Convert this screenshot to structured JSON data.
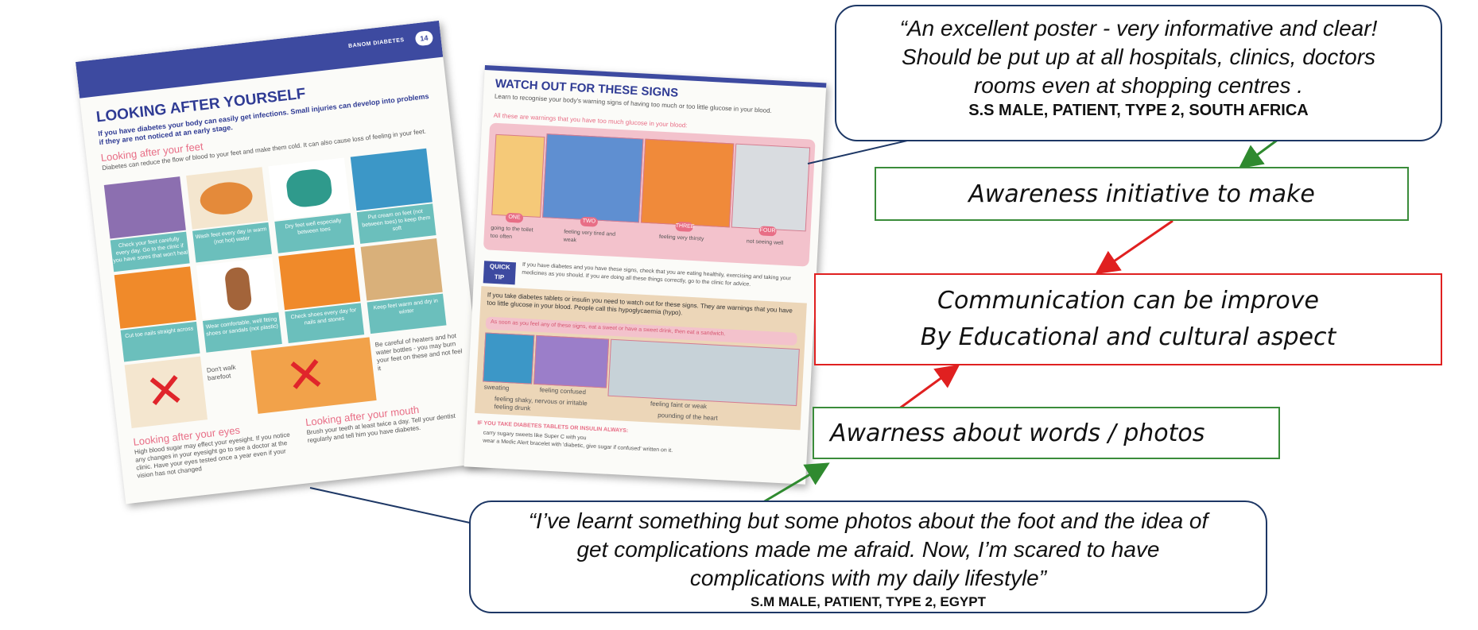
{
  "poster_left": {
    "header": "BANOM DIABETES",
    "page_number": "14",
    "title": "LOOKING AFTER YOURSELF",
    "intro": "If you have diabetes your body can easily get infections. Small injuries can develop into problems if they are not noticed at an early stage.",
    "feet_heading": "Looking after your feet",
    "feet_text": "Diabetes can reduce the flow of blood to your feet and make them cold. It can also cause loss of feeling in your feet.",
    "captions": [
      "Check your feet carefully every day. Go to the clinic if you have sores that won't heal",
      "Wash feet every day in warm (not hot) water",
      "Dry feet well especially between toes",
      "Put cream on feet (not between toes) to keep them soft",
      "Cut toe nails straight across",
      "Wear comfortable, well fitting shoes or sandals (not plastic)",
      "Check shoes every day for nails and stones",
      "Keep feet warm and dry in winter"
    ],
    "dont_walk": "Don't walk barefoot",
    "heaters_warning": "Be careful of heaters and hot water bottles - you may burn your feet on these and not feel it",
    "eyes_heading": "Looking after your eyes",
    "eyes_text": "High blood sugar may effect your eyesight. If you notice any changes in your eyesight go to see a doctor at the clinic. Have your eyes tested once a year even if your vision has not changed",
    "mouth_heading": "Looking after your mouth",
    "mouth_text": "Brush your teeth at least twice a day. Tell your dentist regularly and tell him you have diabetes."
  },
  "poster_right": {
    "title": "WATCH OUT FOR THESE SIGNS",
    "intro": "Learn to recognise your body's warning signs of having too much or too little glucose in your blood.",
    "high_heading": "All these are warnings that you have too much glucose in your blood:",
    "high_signs": [
      "going to the toilet too often",
      "feeling very tired and weak",
      "feeling very thirsty",
      "not seeing well"
    ],
    "badges": [
      "ONE",
      "TWO",
      "THREE",
      "FOUR"
    ],
    "quick_tip_label": "QUICK TIP",
    "quick_tip_text": "If you have diabetes and you have these signs, check that you are eating healthily, exercising and taking your medicines as you should. If you are doing all these things correctly, go to the clinic for advice.",
    "low_text": "If you take diabetes tablets or insulin you need to watch out for these signs. They are warnings that you have too little glucose in your blood. People call this hypoglycaemia (hypo).",
    "low_banner": "As soon as you feel any of these signs, eat a sweet or have a sweet drink, then eat a sandwich.",
    "low_signs": [
      "sweating",
      "feeling confused",
      "feeling faint or weak",
      "pounding of the heart",
      "feeling shaky, nervous or irritable",
      "feeling drunk"
    ],
    "always_heading": "IF YOU TAKE DIABETES TABLETS OR INSULIN ALWAYS:",
    "always_items": [
      "carry sugary sweets like Super C with you",
      "wear a Medic Alert bracelet with 'diabetic, give sugar if confused' written on it."
    ]
  },
  "callouts": {
    "top_quote": [
      "“An excellent poster - very informative and clear!",
      "Should be put up at all hospitals, clinics, doctors",
      "rooms even at shopping centres ."
    ],
    "top_attribution": "S.S MALE, PATIENT, TYPE 2, SOUTH AFRICA",
    "bottom_quote": [
      "“I’ve learnt something but some photos about the foot and the idea of",
      "get complications made me afraid. Now, I’m scared to have",
      "complications with my daily lifestyle”"
    ],
    "bottom_attribution": "S.M MALE,  PATIENT,  TYPE 2, EGYPT"
  },
  "boxes": {
    "awareness_initiative": "Awareness initiative to make",
    "communication_line1": "Communication can be improve",
    "communication_line2": "By Educational and cultural aspect",
    "awareness_words": "Awarness about words / photos"
  },
  "colors": {
    "navy": "#1d3765",
    "green": "#3a8c3a",
    "red": "#e02020",
    "poster_blue": "#3d4aa0",
    "poster_pink": "#e86e86",
    "poster_teal": "#6bbfbc"
  }
}
